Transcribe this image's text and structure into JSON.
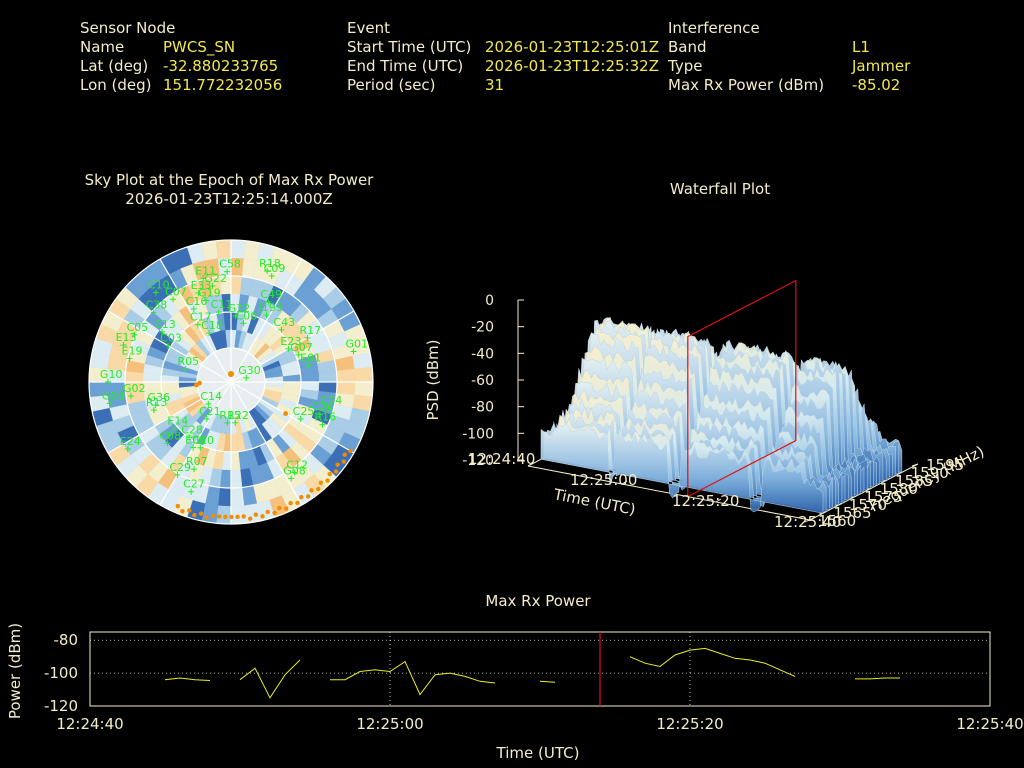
{
  "header": {
    "sensor": {
      "heading": "Sensor Node",
      "name_label": "Name",
      "name_value": "PWCS_SN",
      "lat_label": "Lat (deg)",
      "lat_value": "-32.880233765",
      "lon_label": "Lon (deg)",
      "lon_value": "151.772232056"
    },
    "event": {
      "heading": "Event",
      "start_label": "Start Time (UTC)",
      "start_value": "2026-01-23T12:25:01Z",
      "end_label": "End Time (UTC)",
      "end_value": "2026-01-23T12:25:32Z",
      "period_label": "Period (sec)",
      "period_value": "31"
    },
    "interference": {
      "heading": "Interference",
      "band_label": "Band",
      "band_value": "L1",
      "type_label": "Type",
      "type_value": "Jammer",
      "power_label": "Max Rx Power (dBm)",
      "power_value": "-85.02"
    }
  },
  "colors": {
    "label": "#f5ecc8",
    "value": "#f2e84c",
    "satellite": "#22ee22",
    "obstruction": "#f28c00",
    "marker": "#e01010",
    "trace": "#eeee22"
  },
  "chart_data": [
    {
      "type": "scatter",
      "title": "Sky Plot at the Epoch of Max Rx Power",
      "subtitle": "2026-01-23T12:25:14.000Z",
      "projection": "polar",
      "satellites": [
        {
          "id": "E11",
          "az": 345,
          "el": 22
        },
        {
          "id": "C58",
          "az": 358,
          "el": 20
        },
        {
          "id": "G22",
          "az": 349,
          "el": 28
        },
        {
          "id": "R18",
          "az": 18,
          "el": 16
        },
        {
          "id": "C09",
          "az": 21,
          "el": 18
        },
        {
          "id": "C10",
          "az": 320,
          "el": 16
        },
        {
          "id": "C07",
          "az": 325,
          "el": 26
        },
        {
          "id": "E33",
          "az": 340,
          "el": 30
        },
        {
          "id": "G19",
          "az": 343,
          "el": 36
        },
        {
          "id": "C49",
          "az": 25,
          "el": 34
        },
        {
          "id": "C38",
          "az": 312,
          "el": 24
        },
        {
          "id": "C16",
          "az": 333,
          "el": 38
        },
        {
          "id": "C13",
          "az": 306,
          "el": 36
        },
        {
          "id": "C11",
          "az": 350,
          "el": 45
        },
        {
          "id": "G32",
          "az": 4,
          "el": 48
        },
        {
          "id": "J193",
          "az": 28,
          "el": 42
        },
        {
          "id": "C05",
          "az": 296,
          "el": 22
        },
        {
          "id": "C17",
          "az": 330,
          "el": 48
        },
        {
          "id": "C18",
          "az": 336,
          "el": 56
        },
        {
          "id": "C06",
          "az": 12,
          "el": 52
        },
        {
          "id": "R17",
          "az": 60,
          "el": 34
        },
        {
          "id": "C43",
          "az": 44,
          "el": 44
        },
        {
          "id": "E13",
          "az": 289,
          "el": 18
        },
        {
          "id": "C03",
          "az": 300,
          "el": 44
        },
        {
          "id": "E19",
          "az": 283,
          "el": 24
        },
        {
          "id": "G10",
          "az": 270,
          "el": 12
        },
        {
          "id": "G01",
          "az": 76,
          "el": 10
        },
        {
          "id": "E23",
          "az": 60,
          "el": 48
        },
        {
          "id": "R05",
          "az": 286,
          "el": 60
        },
        {
          "id": "G02",
          "az": 262,
          "el": 26
        },
        {
          "id": "G03",
          "az": 260,
          "el": 12
        },
        {
          "id": "G07",
          "az": 68,
          "el": 44
        },
        {
          "id": "E01",
          "az": 78,
          "el": 40
        },
        {
          "id": "G36",
          "az": 253,
          "el": 40
        },
        {
          "id": "R13",
          "az": 250,
          "el": 38
        },
        {
          "id": "G30",
          "az": 75,
          "el": 80
        },
        {
          "id": "C14",
          "az": 226,
          "el": 70
        },
        {
          "id": "C25",
          "az": 118,
          "el": 40
        },
        {
          "id": "C21",
          "az": 213,
          "el": 62
        },
        {
          "id": "E14",
          "az": 230,
          "el": 44
        },
        {
          "id": "C24",
          "az": 110,
          "el": 30
        },
        {
          "id": "C04",
          "az": 105,
          "el": 26
        },
        {
          "id": "C28",
          "az": 217,
          "el": 46
        },
        {
          "id": "R15",
          "az": 185,
          "el": 64
        },
        {
          "id": "R22",
          "az": 174,
          "el": 64
        },
        {
          "id": "R16",
          "az": 115,
          "el": 26
        },
        {
          "id": "E24",
          "az": 237,
          "el": 12
        },
        {
          "id": "C08",
          "az": 226,
          "el": 34
        },
        {
          "id": "C20",
          "az": 205,
          "el": 44
        },
        {
          "id": "E06",
          "az": 210,
          "el": 42
        },
        {
          "id": "C12",
          "az": 145,
          "el": 20
        },
        {
          "id": "G08",
          "az": 148,
          "el": 18
        },
        {
          "id": "R07",
          "az": 203,
          "el": 30
        },
        {
          "id": "C29",
          "az": 210,
          "el": 22
        },
        {
          "id": "C27",
          "az": 200,
          "el": 16
        }
      ]
    },
    {
      "type": "area",
      "title": "Waterfall Plot",
      "xlabel": "Time (UTC)",
      "ylabel": "Frequency (MHz)",
      "zlabel": "PSD (dBm)",
      "x_ticks": [
        "12:24:40",
        "12:25:00",
        "12:25:20",
        "12:25:40"
      ],
      "y_ticks": [
        "1560",
        "1565",
        "1570",
        "1575",
        "1580",
        "1585",
        "1590",
        "1595"
      ],
      "z_ticks": [
        "0",
        "-20",
        "-40",
        "-60",
        "-80",
        "-100",
        "-120"
      ],
      "zlim": [
        -120,
        0
      ],
      "marker_time": "12:25:14"
    },
    {
      "type": "line",
      "title": "Max Rx Power",
      "xlabel": "Time (UTC)",
      "ylabel": "Power (dBm)",
      "ylim": [
        -120,
        -75
      ],
      "x_ticks": [
        "12:24:40",
        "12:25:00",
        "12:25:20",
        "12:25:40"
      ],
      "y_ticks": [
        -80,
        -100,
        -120
      ],
      "marker_time": "12:25:14",
      "segments": [
        {
          "t": [
            5,
            6,
            7,
            8
          ],
          "v": [
            -104,
            -103,
            -104,
            -104.5
          ]
        },
        {
          "t": [
            10,
            11,
            12,
            13,
            14
          ],
          "v": [
            -104,
            -97,
            -115,
            -101,
            -92
          ]
        },
        {
          "t": [
            16,
            17,
            18,
            19,
            20,
            21,
            22,
            23
          ],
          "v": [
            -104,
            -104,
            -99,
            -98,
            -99,
            -93,
            -113,
            -101
          ]
        },
        {
          "t": [
            23,
            24,
            25,
            26,
            27
          ],
          "v": [
            -101,
            -100,
            -102,
            -105,
            -106
          ]
        },
        {
          "t": [
            30,
            31
          ],
          "v": [
            -105,
            -105.5
          ]
        },
        {
          "t": [
            36,
            37,
            38,
            39,
            40,
            41,
            42,
            43,
            44,
            45,
            46,
            47
          ],
          "v": [
            -90,
            -94,
            -96,
            -89,
            -86,
            -85,
            -88,
            -91,
            -92,
            -94,
            -98,
            -102
          ]
        },
        {
          "t": [
            51,
            52,
            53,
            54
          ],
          "v": [
            -103.5,
            -103.5,
            -103,
            -103
          ]
        }
      ]
    }
  ]
}
